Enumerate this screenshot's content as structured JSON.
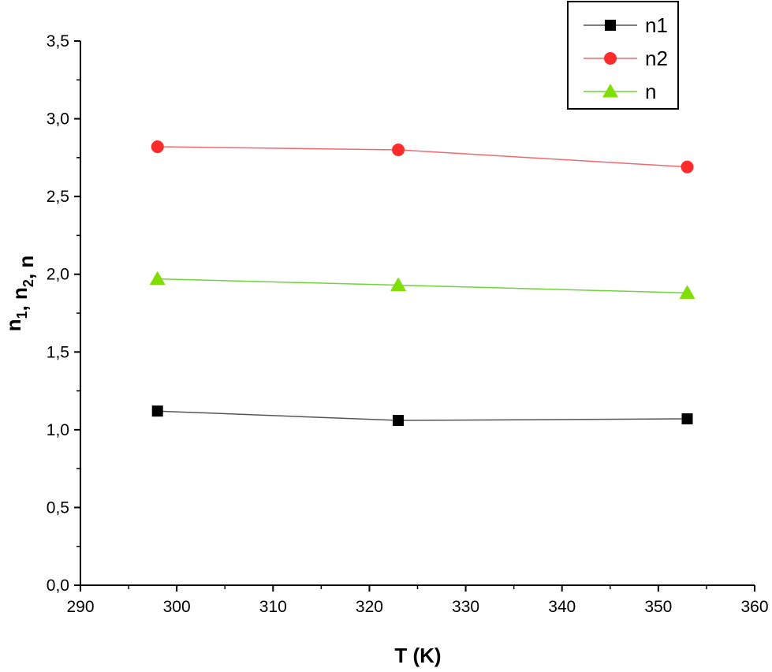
{
  "chart_data": {
    "type": "line",
    "xlabel": "T (K)",
    "ylabel": {
      "parts": [
        {
          "text": "n",
          "sub": "1"
        },
        {
          "text": ", n",
          "sub": "2"
        },
        {
          "text": ", n",
          "sub": ""
        }
      ]
    },
    "xlim": [
      290,
      360
    ],
    "ylim": [
      0,
      3.5
    ],
    "xticks": [
      "290",
      "300",
      "310",
      "320",
      "330",
      "340",
      "350",
      "360"
    ],
    "yticks": [
      "0,0",
      "0,5",
      "1,0",
      "1,5",
      "2,0",
      "2,5",
      "3,0",
      "3,5"
    ],
    "x": [
      298,
      323,
      353
    ],
    "series": [
      {
        "name": "n1",
        "values": [
          1.12,
          1.06,
          1.07
        ],
        "color": "#000000",
        "line_color": "#555555",
        "marker": "square"
      },
      {
        "name": "n2",
        "values": [
          2.82,
          2.8,
          2.69
        ],
        "color": "#ff2a2a",
        "line_color": "#ee6a72",
        "marker": "circle"
      },
      {
        "name": "n",
        "values": [
          1.97,
          1.93,
          1.88
        ],
        "color": "#7fe000",
        "line_color": "#6fd43a",
        "marker": "triangle"
      }
    ],
    "legend_position": "top-right",
    "grid": false
  }
}
